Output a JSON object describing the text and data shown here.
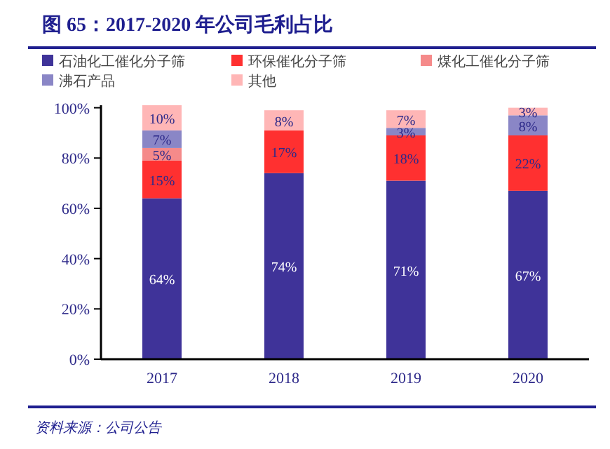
{
  "chart_data": {
    "type": "bar",
    "stacked": true,
    "title": "图 65：2017-2020 年公司毛利占比",
    "categories": [
      "2017",
      "2018",
      "2019",
      "2020"
    ],
    "series": [
      {
        "name": "石油化工催化分子筛",
        "color": "#3f3399",
        "values": [
          64,
          74,
          71,
          67
        ],
        "value_labels": [
          "64%",
          "74%",
          "71%",
          "67%"
        ]
      },
      {
        "name": "环保催化分子筛",
        "color": "#ff3030",
        "values": [
          15,
          17,
          18,
          22
        ],
        "value_labels": [
          "15%",
          "17%",
          "18%",
          "22%"
        ]
      },
      {
        "name": "煤化工催化分子筛",
        "color": "#f58a8a",
        "values": [
          5,
          0,
          0,
          0
        ],
        "value_labels": [
          "5%",
          null,
          null,
          null
        ]
      },
      {
        "name": "沸石产品",
        "color": "#8a86c6",
        "values": [
          7,
          0,
          3,
          8
        ],
        "value_labels": [
          "7%",
          null,
          "3%",
          "8%"
        ]
      },
      {
        "name": "其他",
        "color": "#ffb6b6",
        "values": [
          10,
          8,
          7,
          3
        ],
        "value_labels": [
          "10%",
          "8%",
          "7%",
          "3%"
        ]
      }
    ],
    "ylim": [
      0,
      101
    ],
    "yticks": [
      {
        "value": 0,
        "label": "0%"
      },
      {
        "value": 20,
        "label": "20%"
      },
      {
        "value": 40,
        "label": "40%"
      },
      {
        "value": 60,
        "label": "60%"
      },
      {
        "value": 80,
        "label": "80%"
      },
      {
        "value": 100,
        "label": "100%"
      }
    ],
    "legend": "top",
    "grid": false,
    "annotations": [
      "资料来源：公司公告"
    ]
  }
}
